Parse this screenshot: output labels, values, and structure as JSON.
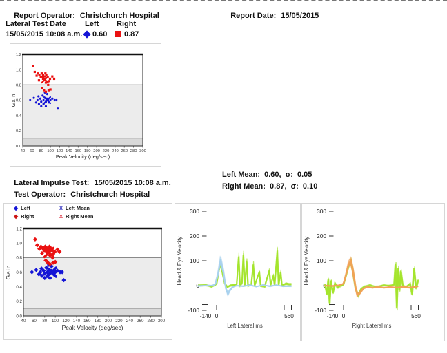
{
  "header": {
    "report_operator_label": "Report Operator:",
    "report_operator_value": "Christchurch Hospital",
    "report_date_label": "Report Date:",
    "report_date_value": "15/05/2015"
  },
  "summary_table": {
    "col_test_date": "Lateral Test Date",
    "col_left": "Left",
    "col_right": "Right",
    "test_datetime": "15/05/2015 10:08 a.m.",
    "left_value": "0.60",
    "right_value": "0.87"
  },
  "impulse_info": {
    "test_label": "Lateral Impulse Test:",
    "test_value": "15/05/2015 10:08 a.m.",
    "operator_label": "Test Operator:",
    "operator_value": "Christchurch Hospital",
    "left_mean": "Left Mean:  0.60,  σ:  0.05",
    "right_mean": "Right Mean:  0.87,  σ:  0.10"
  },
  "colors": {
    "left_blue": "#1414d6",
    "right_red": "#ea1111",
    "trace_green": "#a4e42c",
    "trace_blue": "#a8d2ee",
    "trace_orange": "#f2a257",
    "shade_light": "#ececec",
    "shade_dark": "#d9d9d9",
    "threshold_line": "#7d7d7d",
    "frame": "#1a1a1a",
    "panel_border": "#d6d6d6"
  },
  "chart_data": [
    {
      "id": "gain-scatter-small",
      "type": "scatter",
      "xlabel": "Peak Velocity (deg/sec)",
      "ylabel": "Gain",
      "xlim": [
        40,
        300
      ],
      "ylim": [
        0,
        1.2
      ],
      "xticks": [
        40,
        60,
        80,
        100,
        120,
        140,
        160,
        180,
        200,
        220,
        240,
        260,
        280,
        300
      ],
      "yticks": [
        0.0,
        0.2,
        0.4,
        0.6,
        0.8,
        1.0,
        1.2
      ],
      "threshold_gain": 0.8,
      "lower_band_gain": 0.1,
      "series": [
        {
          "name": "Left",
          "color": "#1414d6",
          "marker": "circle",
          "points": [
            [
              56,
              0.6
            ],
            [
              64,
              0.63
            ],
            [
              69,
              0.57
            ],
            [
              72,
              0.6
            ],
            [
              74,
              0.65
            ],
            [
              75,
              0.55
            ],
            [
              78,
              0.62
            ],
            [
              80,
              0.58
            ],
            [
              80,
              0.52
            ],
            [
              83,
              0.66
            ],
            [
              85,
              0.6
            ],
            [
              85,
              0.55
            ],
            [
              88,
              0.63
            ],
            [
              90,
              0.58
            ],
            [
              90,
              0.52
            ],
            [
              92,
              0.62
            ],
            [
              95,
              0.6
            ],
            [
              97,
              0.57
            ],
            [
              100,
              0.6
            ],
            [
              104,
              0.62
            ],
            [
              109,
              0.6
            ],
            [
              113,
              0.6
            ],
            [
              116,
              0.49
            ],
            [
              88,
              0.7
            ],
            [
              93,
              0.68
            ]
          ]
        },
        {
          "name": "Right",
          "color": "#ea1111",
          "marker": "square",
          "points": [
            [
              62,
              1.05
            ],
            [
              66,
              0.97
            ],
            [
              70,
              0.92
            ],
            [
              73,
              0.95
            ],
            [
              76,
              0.93
            ],
            [
              79,
              0.9
            ],
            [
              81,
              0.95
            ],
            [
              84,
              0.93
            ],
            [
              84,
              0.88
            ],
            [
              87,
              0.91
            ],
            [
              89,
              0.95
            ],
            [
              91,
              0.93
            ],
            [
              94,
              0.9
            ],
            [
              96,
              0.85
            ],
            [
              99,
              0.88
            ],
            [
              104,
              0.91
            ],
            [
              108,
              0.88
            ],
            [
              90,
              0.83
            ],
            [
              95,
              0.8
            ],
            [
              82,
              0.76
            ],
            [
              86,
              0.73
            ],
            [
              90,
              0.71
            ],
            [
              96,
              0.73
            ],
            [
              100,
              0.74
            ],
            [
              75,
              0.86
            ]
          ]
        },
        {
          "name": "Left Mean",
          "color": "#1414d6",
          "marker": "x",
          "points": [
            [
              93,
              0.6
            ]
          ]
        },
        {
          "name": "Right Mean",
          "color": "#ea1111",
          "marker": "x",
          "points": [
            [
              88,
              0.87
            ]
          ]
        }
      ]
    },
    {
      "id": "gain-scatter-large",
      "type": "scatter",
      "xlabel": "Peak Velocity (deg/sec)",
      "ylabel": "Gain",
      "xlim": [
        40,
        300
      ],
      "ylim": [
        0,
        1.2
      ],
      "xticks": [
        40,
        60,
        80,
        100,
        120,
        140,
        160,
        180,
        200,
        220,
        240,
        260,
        280,
        300
      ],
      "yticks": [
        0.0,
        0.2,
        0.4,
        0.6,
        0.8,
        1.0,
        1.2
      ],
      "threshold_gain": 0.8,
      "lower_band_gain": 0.1,
      "series_from": 0,
      "legend": [
        {
          "marker": "diamond",
          "color": "#1414d6",
          "label": "Left"
        },
        {
          "marker": "diamond",
          "color": "#cc1414",
          "label": "Right"
        },
        {
          "marker": "x",
          "color": "#4a4ac8",
          "label": "Left Mean"
        },
        {
          "marker": "x",
          "color": "#dd3344",
          "label": "Right Mean"
        }
      ]
    },
    {
      "id": "left-velocity",
      "type": "line",
      "xlabel": "Left Lateral ms",
      "ylabel": "Head & Eye Velocity",
      "xlim": [
        -140,
        560
      ],
      "ylim": [
        -100,
        300
      ],
      "yticks": [
        300,
        200,
        100,
        0,
        -100
      ],
      "xtick_labels": [
        "-140",
        "0",
        "560"
      ],
      "series": [
        {
          "name": "head-velocity",
          "color": "#a4e42c",
          "n_traces": 10,
          "points": [
            [
              -140,
              0
            ],
            [
              -80,
              2
            ],
            [
              -40,
              -3
            ],
            [
              -10,
              4
            ],
            [
              0,
              10
            ],
            [
              15,
              55
            ],
            [
              30,
              88
            ],
            [
              45,
              45
            ],
            [
              60,
              8
            ],
            [
              80,
              -6
            ],
            [
              100,
              0
            ],
            [
              130,
              3
            ],
            [
              150,
              5
            ],
            [
              165,
              115
            ],
            [
              175,
              0
            ],
            [
              190,
              10
            ],
            [
              200,
              125
            ],
            [
              210,
              0
            ],
            [
              225,
              95
            ],
            [
              235,
              0
            ],
            [
              260,
              5
            ],
            [
              275,
              85
            ],
            [
              285,
              0
            ],
            [
              320,
              55
            ],
            [
              330,
              0
            ],
            [
              360,
              -4
            ],
            [
              395,
              60
            ],
            [
              405,
              0
            ],
            [
              425,
              40
            ],
            [
              435,
              0
            ],
            [
              455,
              140
            ],
            [
              465,
              0
            ],
            [
              480,
              55
            ],
            [
              490,
              0
            ],
            [
              520,
              8
            ],
            [
              560,
              5
            ]
          ]
        },
        {
          "name": "eye-velocity",
          "color": "#a8d2ee",
          "n_traces": 12,
          "points": [
            [
              -140,
              -2
            ],
            [
              -60,
              1
            ],
            [
              -30,
              0
            ],
            [
              -10,
              6
            ],
            [
              10,
              45
            ],
            [
              30,
              105
            ],
            [
              50,
              60
            ],
            [
              70,
              -10
            ],
            [
              85,
              -35
            ],
            [
              100,
              -20
            ],
            [
              120,
              -6
            ],
            [
              150,
              0
            ],
            [
              200,
              -3
            ],
            [
              250,
              2
            ],
            [
              300,
              -4
            ],
            [
              350,
              3
            ],
            [
              400,
              -3
            ],
            [
              450,
              2
            ],
            [
              500,
              -3
            ],
            [
              560,
              -2
            ]
          ]
        }
      ]
    },
    {
      "id": "right-velocity",
      "type": "line",
      "xlabel": "Right Lateral ms",
      "ylabel": "Head & Eye Velocity",
      "xlim": [
        -140,
        560
      ],
      "ylim": [
        -100,
        300
      ],
      "yticks": [
        300,
        200,
        100,
        0,
        -100
      ],
      "xtick_labels": [
        "-140",
        "0",
        "560"
      ],
      "series": [
        {
          "name": "head-velocity",
          "color": "#a4e42c",
          "n_traces": 10,
          "points": [
            [
              -140,
              5
            ],
            [
              -125,
              -35
            ],
            [
              -115,
              25
            ],
            [
              -105,
              -75
            ],
            [
              -95,
              20
            ],
            [
              -80,
              -30
            ],
            [
              -65,
              10
            ],
            [
              -45,
              -8
            ],
            [
              -20,
              0
            ],
            [
              0,
              6
            ],
            [
              20,
              42
            ],
            [
              40,
              85
            ],
            [
              55,
              100
            ],
            [
              70,
              60
            ],
            [
              90,
              -10
            ],
            [
              110,
              -40
            ],
            [
              130,
              -15
            ],
            [
              155,
              -5
            ],
            [
              200,
              0
            ],
            [
              250,
              -4
            ],
            [
              300,
              2
            ],
            [
              350,
              0
            ],
            [
              380,
              5
            ],
            [
              390,
              88
            ],
            [
              400,
              -92
            ],
            [
              410,
              72
            ],
            [
              420,
              -20
            ],
            [
              430,
              60
            ],
            [
              445,
              0
            ],
            [
              470,
              -6
            ],
            [
              500,
              8
            ],
            [
              515,
              -35
            ],
            [
              530,
              70
            ],
            [
              545,
              -12
            ],
            [
              560,
              22
            ]
          ]
        },
        {
          "name": "eye-velocity",
          "color": "#f2a257",
          "n_traces": 14,
          "points": [
            [
              -140,
              0
            ],
            [
              -80,
              -2
            ],
            [
              -30,
              2
            ],
            [
              0,
              8
            ],
            [
              20,
              45
            ],
            [
              40,
              88
            ],
            [
              55,
              100
            ],
            [
              70,
              65
            ],
            [
              90,
              -5
            ],
            [
              105,
              -38
            ],
            [
              125,
              -30
            ],
            [
              150,
              -12
            ],
            [
              180,
              -6
            ],
            [
              220,
              -9
            ],
            [
              260,
              -5
            ],
            [
              300,
              -9
            ],
            [
              350,
              -5
            ],
            [
              400,
              -9
            ],
            [
              450,
              -5
            ],
            [
              500,
              -8
            ],
            [
              530,
              -5
            ],
            [
              560,
              -3
            ]
          ]
        }
      ]
    }
  ]
}
